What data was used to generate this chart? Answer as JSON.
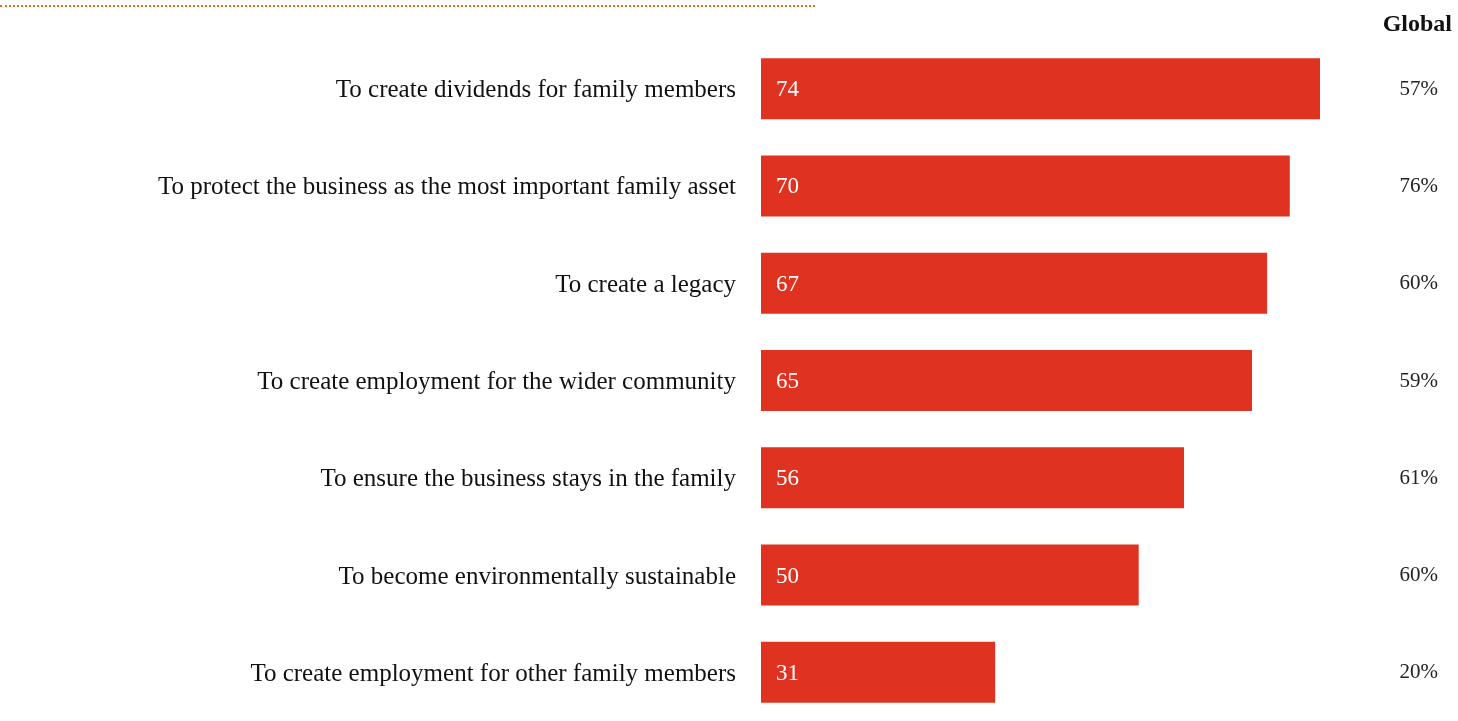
{
  "chart_data": {
    "type": "bar",
    "orientation": "horizontal",
    "categories": [
      "To create dividends for family members",
      "To protect the business as the most important family asset",
      "To create a legacy",
      "To create employment for the wider community",
      "To ensure the business stays in the family",
      "To become environmentally sustainable",
      "To create employment for other family members"
    ],
    "series": [
      {
        "color": "#e03220",
        "values": [
          74,
          70,
          67,
          65,
          56,
          50,
          31
        ]
      }
    ],
    "annotations": [
      "Global",
      "57%",
      "76%",
      "60%",
      "59%",
      "61%",
      "60%",
      "20%"
    ],
    "data_labels": true
  }
}
